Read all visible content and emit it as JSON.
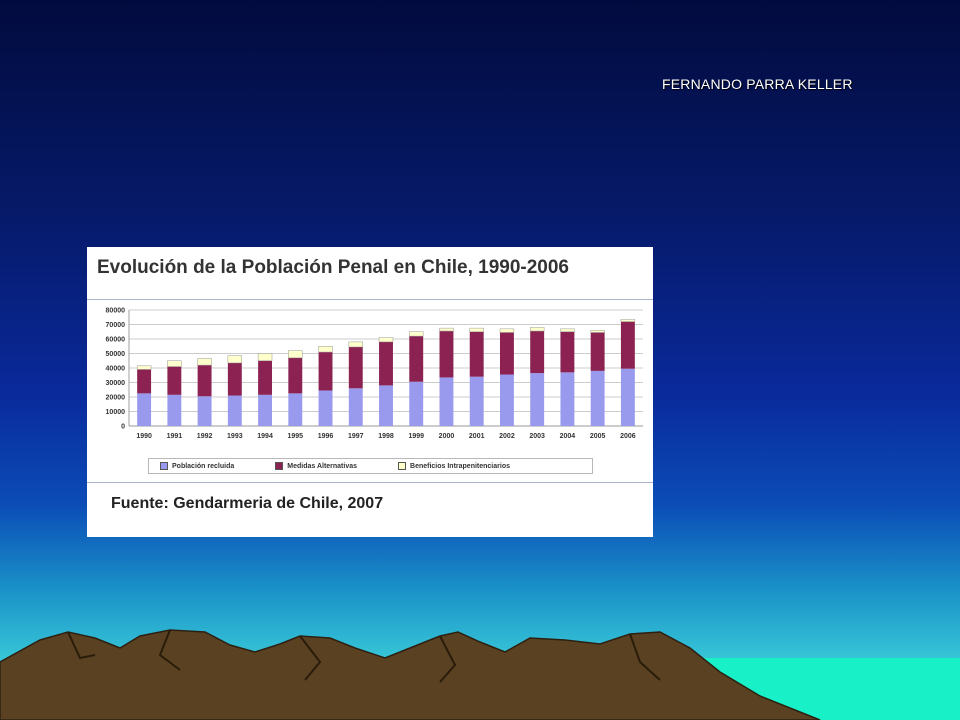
{
  "author": "FERNANDO PARRA KELLER",
  "chart_title": "Evolución de la Población Penal en Chile, 1990-2006",
  "source": "Fuente: Gendarmeria de Chile, 2007",
  "colors": {
    "recluida": "#9999ee",
    "medidas": "#8b2252",
    "beneficios": "#ffffcc"
  },
  "chart_data": {
    "type": "bar",
    "stacked": true,
    "categories": [
      "1990",
      "1991",
      "1992",
      "1993",
      "1994",
      "1995",
      "1996",
      "1997",
      "1998",
      "1999",
      "2000",
      "2001",
      "2002",
      "2003",
      "2004",
      "2005",
      "2006"
    ],
    "series": [
      {
        "name": "Población recluida",
        "values": [
          22500,
          21500,
          20500,
          21000,
          21500,
          22500,
          24500,
          26000,
          28000,
          30500,
          33500,
          34000,
          35500,
          36500,
          37000,
          38000,
          39500
        ]
      },
      {
        "name": "Medidas Alternativas",
        "values": [
          16500,
          19500,
          21500,
          22500,
          23500,
          24500,
          26500,
          28500,
          30000,
          31500,
          32000,
          31000,
          29000,
          29000,
          28000,
          26500,
          32500
        ]
      },
      {
        "name": "Beneficios Intrapenitenciarios",
        "values": [
          2500,
          4000,
          4500,
          5000,
          5000,
          5000,
          4000,
          3500,
          3000,
          3000,
          2000,
          2500,
          2500,
          2500,
          2000,
          1500,
          1500
        ]
      }
    ],
    "ylim": [
      0,
      80000
    ],
    "yticks": [
      0,
      10000,
      20000,
      30000,
      40000,
      50000,
      60000,
      70000,
      80000
    ],
    "grid": true,
    "legend_position": "bottom"
  }
}
